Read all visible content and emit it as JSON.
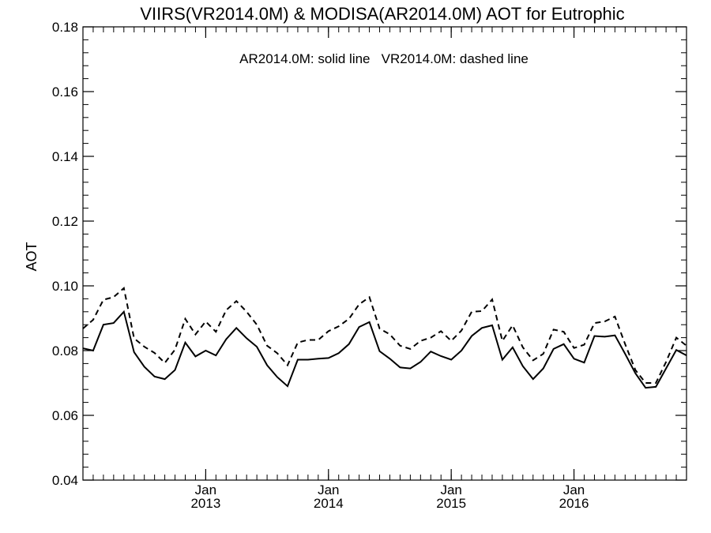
{
  "chart_data": {
    "type": "line",
    "title": "VIIRS(VR2014.0M) & MODISA(AR2014.0M)  AOT for Eutrophic",
    "annotation": "AR2014.0M: solid line   VR2014.0M: dashed line",
    "xlabel": "",
    "ylabel": "AOT",
    "xlim": [
      "2012-01",
      "2016-12"
    ],
    "ylim": [
      0.04,
      0.18
    ],
    "yticks": [
      "0.04",
      "0.06",
      "0.08",
      "0.10",
      "0.12",
      "0.14",
      "0.16",
      "0.18"
    ],
    "xticks": [
      {
        "month": "Jan",
        "year": "2013",
        "date": "2013-01"
      },
      {
        "month": "Jan",
        "year": "2014",
        "date": "2014-01"
      },
      {
        "month": "Jan",
        "year": "2015",
        "date": "2015-01"
      },
      {
        "month": "Jan",
        "year": "2016",
        "date": "2016-01"
      }
    ],
    "grid": false,
    "x": [
      "2012-01",
      "2012-02",
      "2012-03",
      "2012-04",
      "2012-05",
      "2012-06",
      "2012-07",
      "2012-08",
      "2012-09",
      "2012-10",
      "2012-11",
      "2012-12",
      "2013-01",
      "2013-02",
      "2013-03",
      "2013-04",
      "2013-05",
      "2013-06",
      "2013-07",
      "2013-08",
      "2013-09",
      "2013-10",
      "2013-11",
      "2013-12",
      "2014-01",
      "2014-02",
      "2014-03",
      "2014-04",
      "2014-05",
      "2014-06",
      "2014-07",
      "2014-08",
      "2014-09",
      "2014-10",
      "2014-11",
      "2014-12",
      "2015-01",
      "2015-02",
      "2015-03",
      "2015-04",
      "2015-05",
      "2015-06",
      "2015-07",
      "2015-08",
      "2015-09",
      "2015-10",
      "2015-11",
      "2015-12",
      "2016-01",
      "2016-02",
      "2016-03",
      "2016-04",
      "2016-05",
      "2016-06",
      "2016-07",
      "2016-08",
      "2016-09",
      "2016-10",
      "2016-11",
      "2016-12"
    ],
    "series": [
      {
        "style": "solid",
        "values": [
          0.0807,
          0.08,
          0.088,
          0.0885,
          0.092,
          0.0795,
          0.075,
          0.072,
          0.0712,
          0.074,
          0.0825,
          0.0782,
          0.08,
          0.0785,
          0.0835,
          0.087,
          0.0838,
          0.0812,
          0.0755,
          0.0718,
          0.069,
          0.0772,
          0.0772,
          0.0775,
          0.0777,
          0.0792,
          0.082,
          0.0873,
          0.0888,
          0.0798,
          0.0775,
          0.0748,
          0.0745,
          0.0765,
          0.0797,
          0.0783,
          0.0772,
          0.08,
          0.0845,
          0.087,
          0.0878,
          0.0772,
          0.081,
          0.0752,
          0.0712,
          0.0745,
          0.0805,
          0.082,
          0.0775,
          0.0763,
          0.0845,
          0.0843,
          0.0847,
          0.079,
          0.073,
          0.0685,
          0.0688,
          0.0745,
          0.0802,
          0.0785
        ]
      },
      {
        "style": "dashed",
        "values": [
          0.0868,
          0.0895,
          0.0957,
          0.0965,
          0.0993,
          0.0838,
          0.0812,
          0.0793,
          0.0762,
          0.0803,
          0.0898,
          0.085,
          0.089,
          0.0858,
          0.0925,
          0.0953,
          0.092,
          0.088,
          0.0815,
          0.0792,
          0.0755,
          0.0825,
          0.0833,
          0.0833,
          0.086,
          0.0875,
          0.0898,
          0.0943,
          0.0965,
          0.0868,
          0.085,
          0.0815,
          0.0805,
          0.083,
          0.084,
          0.086,
          0.083,
          0.0862,
          0.092,
          0.0922,
          0.0958,
          0.083,
          0.0878,
          0.081,
          0.077,
          0.079,
          0.0865,
          0.0858,
          0.0808,
          0.0818,
          0.0885,
          0.089,
          0.0905,
          0.082,
          0.074,
          0.07,
          0.07,
          0.0765,
          0.084,
          0.0815
        ]
      }
    ]
  }
}
